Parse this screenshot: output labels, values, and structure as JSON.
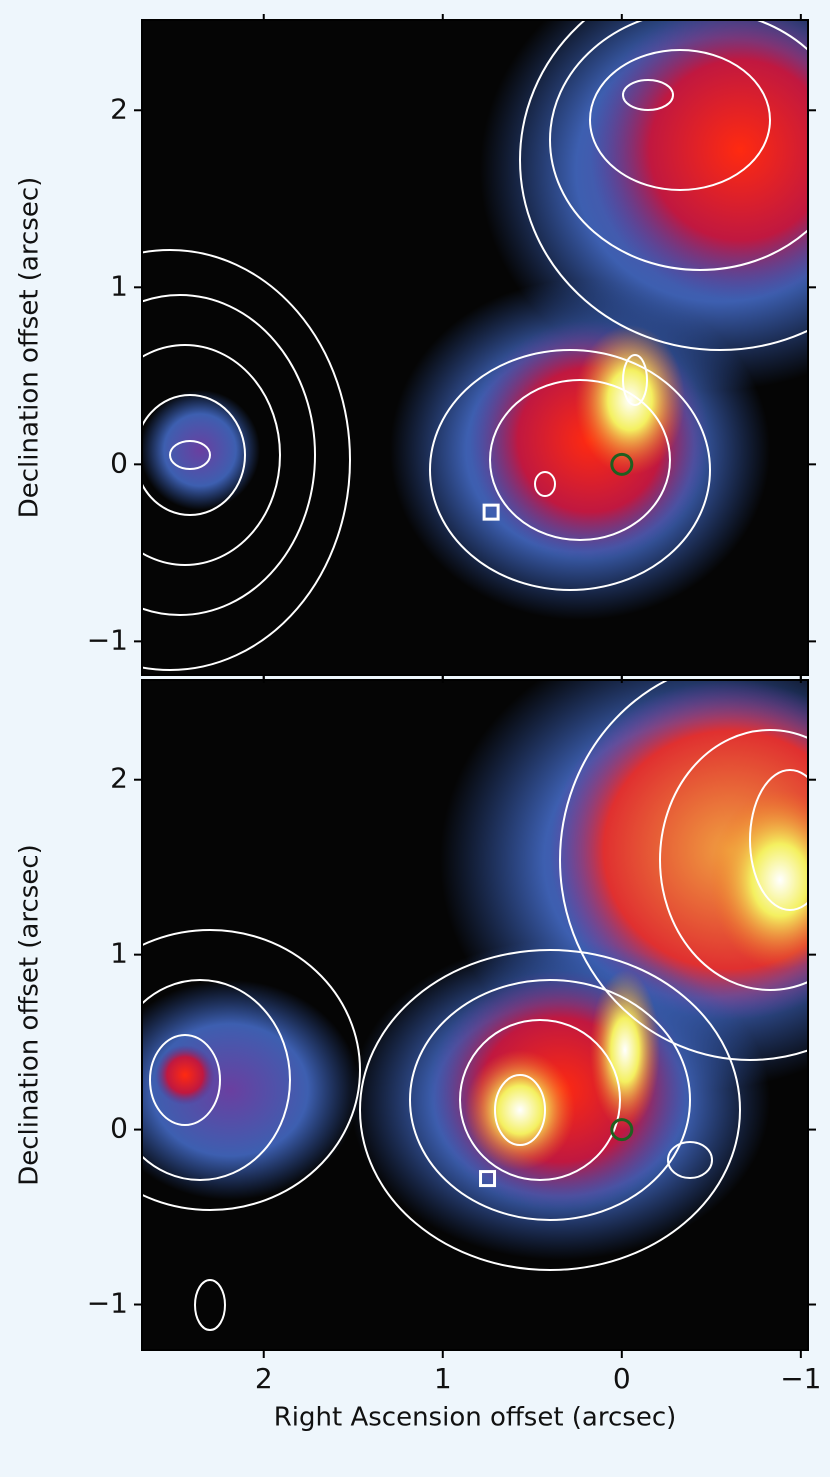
{
  "chart_data": [
    {
      "type": "image",
      "ylabel": "Declination offset (arcsec)",
      "xlim": [
        2.68,
        -1.04
      ],
      "xticks": [
        2,
        1,
        0,
        -1
      ],
      "ylim": [
        -1.19,
        2.51
      ],
      "yticks": [
        2,
        1,
        0,
        {
          "value": -1,
          "label": "−1"
        }
      ],
      "markers": [
        {
          "shape": "square",
          "x": 0.73,
          "y": -0.27,
          "color": "#ffffff"
        },
        {
          "shape": "circle",
          "x": 0,
          "y": 0,
          "color": "#1f5f1f"
        }
      ]
    },
    {
      "type": "image",
      "ylabel": "Declination offset (arcsec)",
      "xlabel": "Right Ascension offset (arcsec)",
      "xlim": [
        2.68,
        -1.04
      ],
      "xticks": [
        2,
        1,
        0,
        {
          "value": -1,
          "label": "−1"
        }
      ],
      "ylim": [
        -1.26,
        2.57
      ],
      "yticks": [
        2,
        1,
        0,
        {
          "value": -1,
          "label": "−1"
        }
      ],
      "markers": [
        {
          "shape": "square",
          "x": 0.75,
          "y": -0.28,
          "color": "#ffffff"
        },
        {
          "shape": "circle",
          "x": 0,
          "y": 0,
          "color": "#1f5f1f"
        }
      ]
    }
  ]
}
